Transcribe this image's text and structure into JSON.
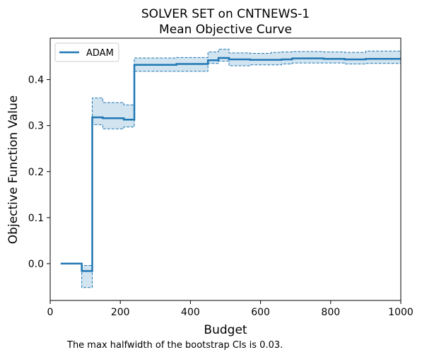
{
  "chart_data": {
    "type": "line",
    "title": "SOLVER SET on CNTNEWS-1",
    "subtitle": "Mean Objective Curve",
    "xlabel": "Budget",
    "ylabel": "Objective Function Value",
    "xlim": [
      0,
      1000
    ],
    "ylim": [
      -0.08,
      0.49
    ],
    "x_ticks": [
      0,
      200,
      400,
      600,
      800,
      1000
    ],
    "y_ticks": [
      0.0,
      0.1,
      0.2,
      0.3,
      0.4
    ],
    "x_tick_labels": [
      "0",
      "200",
      "400",
      "600",
      "800",
      "1000"
    ],
    "y_tick_labels": [
      "0.0",
      "0.1",
      "0.2",
      "0.3",
      "0.4"
    ],
    "grid": false,
    "legend_position": "upper-left",
    "series": [
      {
        "name": "ADAM",
        "color": "#1f77b4",
        "step": "post",
        "x": [
          30,
          90,
          120,
          150,
          210,
          240,
          360,
          450,
          480,
          510,
          570,
          630,
          660,
          690,
          780,
          840,
          900,
          1000
        ],
        "y": [
          0.0,
          -0.016,
          0.318,
          0.316,
          0.313,
          0.432,
          0.434,
          0.442,
          0.447,
          0.444,
          0.443,
          0.443,
          0.444,
          0.446,
          0.445,
          0.444,
          0.445,
          0.445
        ],
        "ci_lower": [
          0.0,
          -0.052,
          0.302,
          0.293,
          0.297,
          0.418,
          0.418,
          0.435,
          0.44,
          0.43,
          0.432,
          0.432,
          0.434,
          0.436,
          0.436,
          0.434,
          0.435,
          0.435
        ],
        "ci_upper": [
          0.0,
          -0.004,
          0.36,
          0.35,
          0.345,
          0.447,
          0.448,
          0.46,
          0.466,
          0.458,
          0.457,
          0.459,
          0.46,
          0.461,
          0.46,
          0.459,
          0.462,
          0.462
        ]
      }
    ]
  },
  "footnote": "The max halfwidth of the bootstrap CIs is 0.03."
}
